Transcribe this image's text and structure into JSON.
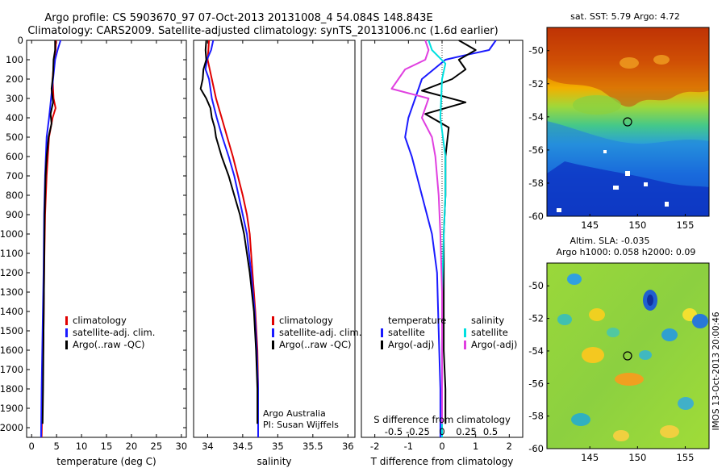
{
  "header": {
    "line1": "Argo profile: CS 5903670_97 07-Oct-2013 20131008_4 54.084S 148.843E",
    "line2": "Climatology: CARS2009. Satellite-adjusted climatology: synTS_20131006.nc (1.6d earlier)"
  },
  "colors": {
    "climatology": "#e00000",
    "satellite": "#1a1aff",
    "argo": "#000000",
    "satellite_s": "#00e0e0",
    "argo_s": "#e040e0"
  },
  "map1_title": "sat. SST: 5.79 Argo: 4.72",
  "map2_title1": "Altim. SLA: -0.035",
  "map2_title2": "Argo h1000: 0.058 h2000: 0.09",
  "credit": "IMOS 13-Oct-2013 20:00:46",
  "chart_data": [
    {
      "type": "line",
      "id": "temperature",
      "xlabel": "temperature (deg C)",
      "ylabel": "",
      "xlim": [
        -1,
        31
      ],
      "ylim": [
        2050,
        0
      ],
      "xticks": [
        0,
        5,
        10,
        15,
        20,
        25,
        30
      ],
      "yticks": [
        0,
        100,
        200,
        300,
        400,
        500,
        600,
        700,
        800,
        900,
        1000,
        1100,
        1200,
        1300,
        1400,
        1500,
        1600,
        1700,
        1800,
        1900,
        2000
      ],
      "legend": [
        "climatology",
        "satellite-adj. clim.",
        "Argo(..raw -QC)"
      ],
      "series": [
        {
          "name": "climatology",
          "color": "#e00000",
          "points": [
            [
              4.9,
              0
            ],
            [
              4.8,
              50
            ],
            [
              4.5,
              100
            ],
            [
              4.2,
              200
            ],
            [
              4.4,
              300
            ],
            [
              4.8,
              350
            ],
            [
              4.2,
              400
            ],
            [
              3.5,
              500
            ],
            [
              3.0,
              700
            ],
            [
              2.7,
              900
            ],
            [
              2.5,
              1200
            ],
            [
              2.4,
              1500
            ],
            [
              2.2,
              1800
            ],
            [
              2.0,
              2050
            ]
          ]
        },
        {
          "name": "satellite-adj. clim.",
          "color": "#1a1aff",
          "points": [
            [
              5.8,
              0
            ],
            [
              5.2,
              50
            ],
            [
              4.7,
              100
            ],
            [
              4.3,
              200
            ],
            [
              3.9,
              300
            ],
            [
              3.5,
              400
            ],
            [
              3.0,
              500
            ],
            [
              2.7,
              700
            ],
            [
              2.5,
              900
            ],
            [
              2.4,
              1200
            ],
            [
              2.2,
              1500
            ],
            [
              2.0,
              1800
            ],
            [
              1.9,
              2050
            ]
          ]
        },
        {
          "name": "Argo(..raw -QC)",
          "color": "#000000",
          "points": [
            [
              4.7,
              0
            ],
            [
              4.7,
              50
            ],
            [
              4.4,
              100
            ],
            [
              4.3,
              180
            ],
            [
              4.0,
              250
            ],
            [
              4.3,
              320
            ],
            [
              3.8,
              380
            ],
            [
              4.0,
              430
            ],
            [
              3.4,
              500
            ],
            [
              3.0,
              600
            ],
            [
              2.8,
              700
            ],
            [
              2.6,
              900
            ],
            [
              2.5,
              1200
            ],
            [
              2.4,
              1500
            ],
            [
              2.3,
              1800
            ],
            [
              2.2,
              1980
            ]
          ]
        }
      ]
    },
    {
      "type": "line",
      "id": "salinity",
      "xlabel": "salinity",
      "xlim": [
        33.8,
        36.1
      ],
      "ylim": [
        2050,
        0
      ],
      "xticks": [
        34,
        34.5,
        35,
        35.5,
        36
      ],
      "xtick_labels": [
        "34",
        "34.5",
        "35",
        "35.5",
        "36"
      ],
      "legend": [
        "climatology",
        "satellite-adj. clim.",
        "Argo(..raw -QC)"
      ],
      "annotation": [
        "Argo Australia",
        "PI: Susan Wijffels"
      ],
      "series": [
        {
          "name": "climatology",
          "color": "#e00000",
          "points": [
            [
              34.02,
              0
            ],
            [
              34.01,
              50
            ],
            [
              34.0,
              100
            ],
            [
              34.06,
              200
            ],
            [
              34.12,
              300
            ],
            [
              34.2,
              400
            ],
            [
              34.28,
              500
            ],
            [
              34.36,
              600
            ],
            [
              34.43,
              700
            ],
            [
              34.5,
              800
            ],
            [
              34.56,
              900
            ],
            [
              34.6,
              1000
            ],
            [
              34.64,
              1200
            ],
            [
              34.68,
              1400
            ],
            [
              34.71,
              1600
            ],
            [
              34.72,
              1800
            ],
            [
              34.72,
              2050
            ]
          ]
        },
        {
          "name": "satellite-adj. clim.",
          "color": "#1a1aff",
          "points": [
            [
              34.08,
              0
            ],
            [
              34.05,
              50
            ],
            [
              33.99,
              100
            ],
            [
              33.97,
              150
            ],
            [
              34.02,
              200
            ],
            [
              34.06,
              300
            ],
            [
              34.13,
              400
            ],
            [
              34.21,
              500
            ],
            [
              34.3,
              600
            ],
            [
              34.38,
              700
            ],
            [
              34.44,
              800
            ],
            [
              34.5,
              900
            ],
            [
              34.56,
              1000
            ],
            [
              34.62,
              1200
            ],
            [
              34.67,
              1400
            ],
            [
              34.7,
              1600
            ],
            [
              34.72,
              1800
            ],
            [
              34.72,
              2050
            ]
          ]
        },
        {
          "name": "Argo(..raw -QC)",
          "color": "#000000",
          "points": [
            [
              33.98,
              0
            ],
            [
              33.97,
              50
            ],
            [
              33.98,
              100
            ],
            [
              33.94,
              150
            ],
            [
              33.93,
              200
            ],
            [
              33.9,
              250
            ],
            [
              33.98,
              300
            ],
            [
              34.04,
              350
            ],
            [
              34.06,
              400
            ],
            [
              34.1,
              450
            ],
            [
              34.12,
              500
            ],
            [
              34.2,
              600
            ],
            [
              34.3,
              700
            ],
            [
              34.38,
              800
            ],
            [
              34.46,
              900
            ],
            [
              34.52,
              1000
            ],
            [
              34.6,
              1200
            ],
            [
              34.66,
              1400
            ],
            [
              34.69,
              1600
            ],
            [
              34.71,
              1800
            ],
            [
              34.71,
              1980
            ]
          ]
        }
      ]
    },
    {
      "type": "line",
      "id": "difference",
      "xlabel": "T difference from climatology",
      "xlabel2": "S difference from climatology",
      "xlim": [
        -2.4,
        2.4
      ],
      "ylim": [
        2050,
        0
      ],
      "xticks": [
        -2,
        -1,
        0,
        1,
        2
      ],
      "xticks_top": [
        -0.5,
        -0.25,
        0,
        0.25,
        0.5
      ],
      "xtick_labels_top": [
        "-0.5",
        "-0.25",
        "0",
        "0.25",
        "0.5"
      ],
      "legend_temperature": [
        "temperature",
        "satellite",
        "Argo(-adj)"
      ],
      "legend_salinity": [
        "salinity",
        "satellite",
        "Argo(-adj)"
      ],
      "series": [
        {
          "name": "satellite",
          "group": "temperature",
          "color": "#1a1aff",
          "points": [
            [
              1.6,
              0
            ],
            [
              1.4,
              50
            ],
            [
              0.6,
              80
            ],
            [
              0.1,
              100
            ],
            [
              -0.6,
              200
            ],
            [
              -0.8,
              300
            ],
            [
              -1.0,
              400
            ],
            [
              -1.1,
              500
            ],
            [
              -0.9,
              600
            ],
            [
              -0.6,
              800
            ],
            [
              -0.3,
              1000
            ],
            [
              -0.15,
              1200
            ],
            [
              -0.1,
              1500
            ],
            [
              -0.05,
              1800
            ],
            [
              -0.05,
              2050
            ]
          ]
        },
        {
          "name": "Argo(-adj)",
          "group": "temperature",
          "color": "#000000",
          "points": [
            [
              0.5,
              0
            ],
            [
              1.0,
              50
            ],
            [
              0.5,
              100
            ],
            [
              0.7,
              150
            ],
            [
              0.3,
              200
            ],
            [
              -0.6,
              260
            ],
            [
              0.7,
              320
            ],
            [
              -0.5,
              380
            ],
            [
              0.2,
              450
            ],
            [
              0.1,
              600
            ],
            [
              0.1,
              800
            ],
            [
              0.05,
              1000
            ],
            [
              0.05,
              1300
            ],
            [
              0.05,
              1600
            ],
            [
              0.1,
              1800
            ],
            [
              0.1,
              1980
            ]
          ]
        },
        {
          "name": "satellite",
          "group": "salinity",
          "color": "#00e0e0",
          "points": [
            [
              -0.4,
              0
            ],
            [
              -0.3,
              50
            ],
            [
              0.1,
              120
            ],
            [
              0.0,
              200
            ],
            [
              -0.05,
              400
            ],
            [
              0.1,
              600
            ],
            [
              0.1,
              800
            ],
            [
              0.05,
              1000
            ],
            [
              0.0,
              1300
            ],
            [
              0.0,
              1600
            ],
            [
              0.0,
              2050
            ]
          ]
        },
        {
          "name": "Argo(-adj)",
          "group": "salinity",
          "color": "#e040e0",
          "points": [
            [
              -0.5,
              0
            ],
            [
              -0.4,
              50
            ],
            [
              -0.5,
              100
            ],
            [
              -1.1,
              150
            ],
            [
              -1.5,
              250
            ],
            [
              -0.4,
              300
            ],
            [
              -0.6,
              400
            ],
            [
              -0.3,
              500
            ],
            [
              -0.2,
              600
            ],
            [
              -0.1,
              800
            ],
            [
              -0.05,
              1000
            ],
            [
              0.0,
              1300
            ],
            [
              0.0,
              1600
            ],
            [
              0.0,
              1980
            ]
          ]
        }
      ]
    },
    {
      "type": "heatmap",
      "id": "sst-map",
      "title": "sat. SST: 5.79 Argo: 4.72",
      "xlim": [
        140.5,
        157.5
      ],
      "ylim": [
        -60,
        -48.6
      ],
      "xticks": [
        145,
        150,
        155
      ],
      "yticks": [
        -50,
        -52,
        -54,
        -56,
        -58,
        -60
      ],
      "marker": {
        "lon": 148.843,
        "lat": -54.084
      }
    },
    {
      "type": "heatmap",
      "id": "sla-map",
      "title": "Altim. SLA: -0.035",
      "subtitle": "Argo h1000: 0.058 h2000: 0.09",
      "xlim": [
        140.5,
        157.5
      ],
      "ylim": [
        -60,
        -48.6
      ],
      "xticks": [
        145,
        150,
        155
      ],
      "yticks": [
        -50,
        -52,
        -54,
        -56,
        -58,
        -60
      ],
      "marker": {
        "lon": 148.843,
        "lat": -54.084
      }
    }
  ]
}
